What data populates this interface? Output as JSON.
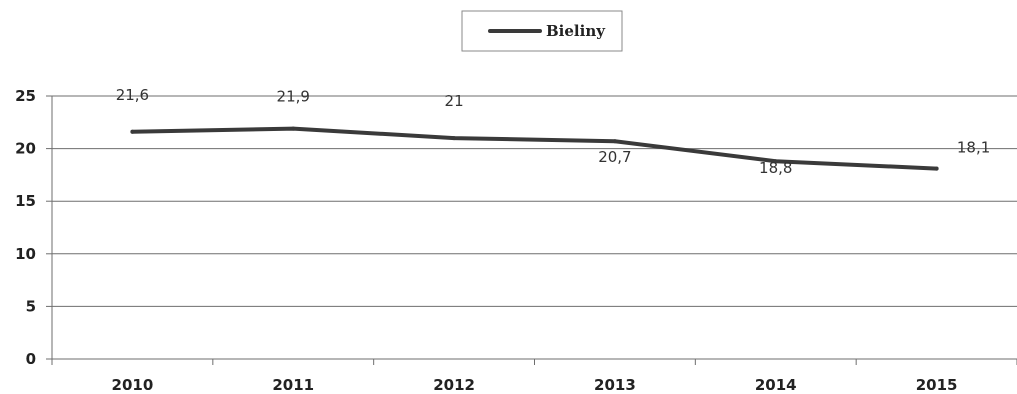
{
  "chart_data": {
    "type": "line",
    "title": "",
    "xlabel": "",
    "ylabel": "",
    "categories": [
      "2010",
      "2011",
      "2012",
      "2013",
      "2014",
      "2015"
    ],
    "series": [
      {
        "name": "Bieliny",
        "values": [
          21.6,
          21.9,
          21,
          20.7,
          18.8,
          18.1
        ]
      }
    ],
    "data_labels": [
      "21,6",
      "21,9",
      "21",
      "20,7",
      "18,8",
      "18,1"
    ],
    "ylim": [
      0,
      25
    ],
    "yticks": [
      "0",
      "5",
      "10",
      "15",
      "20",
      "25"
    ],
    "grid": true,
    "legend": "top-center",
    "line_color": "#3a3a3a"
  }
}
